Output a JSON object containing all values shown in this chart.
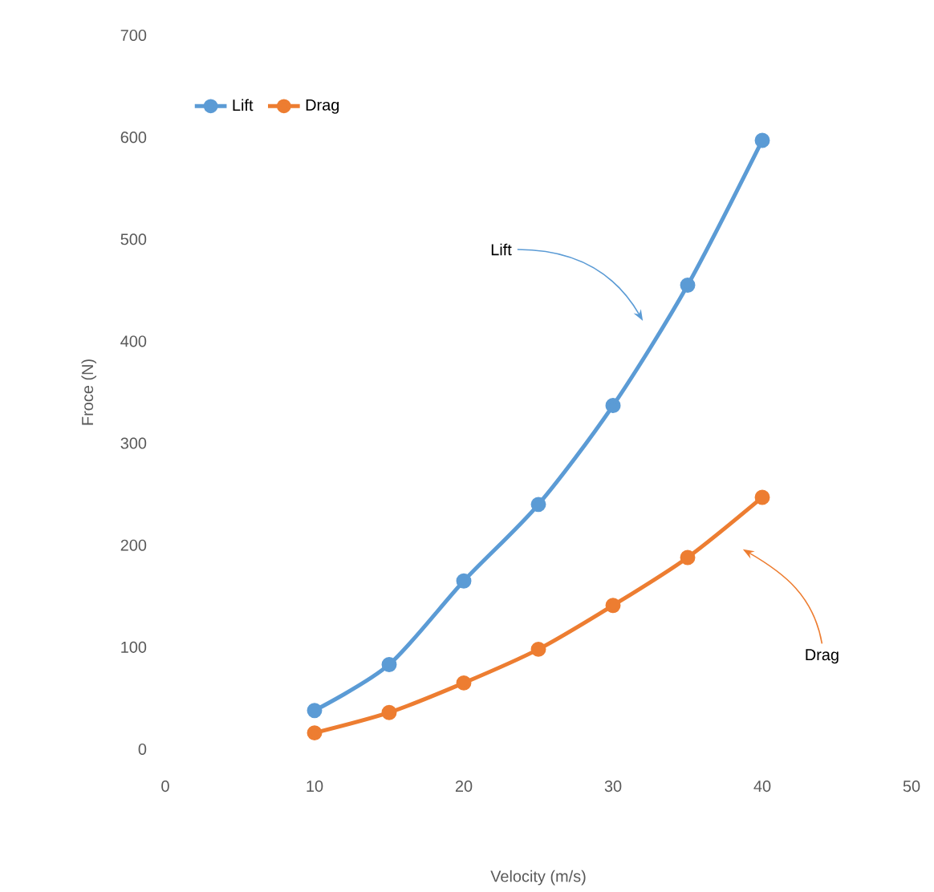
{
  "chart_data": {
    "type": "line",
    "xlabel": "Velocity (m/s)",
    "ylabel": "Froce (N)",
    "x": [
      10,
      15,
      20,
      25,
      30,
      35,
      40
    ],
    "series": [
      {
        "name": "Lift",
        "color": "#5b9bd5",
        "values": [
          38,
          83,
          165,
          240,
          337,
          455,
          597
        ]
      },
      {
        "name": "Drag",
        "color": "#ed7d31",
        "values": [
          16,
          36,
          65,
          98,
          141,
          188,
          247
        ]
      }
    ],
    "xlim": [
      0,
      50
    ],
    "xticks": [
      0,
      10,
      20,
      30,
      40,
      50
    ],
    "ylim": [
      0,
      700
    ],
    "yticks": [
      0,
      100,
      200,
      300,
      400,
      500,
      600,
      700
    ],
    "annotations": [
      "Lift",
      "Drag"
    ],
    "legend": "top left",
    "grid": false,
    "marker": "circle",
    "line_style": "solid"
  }
}
